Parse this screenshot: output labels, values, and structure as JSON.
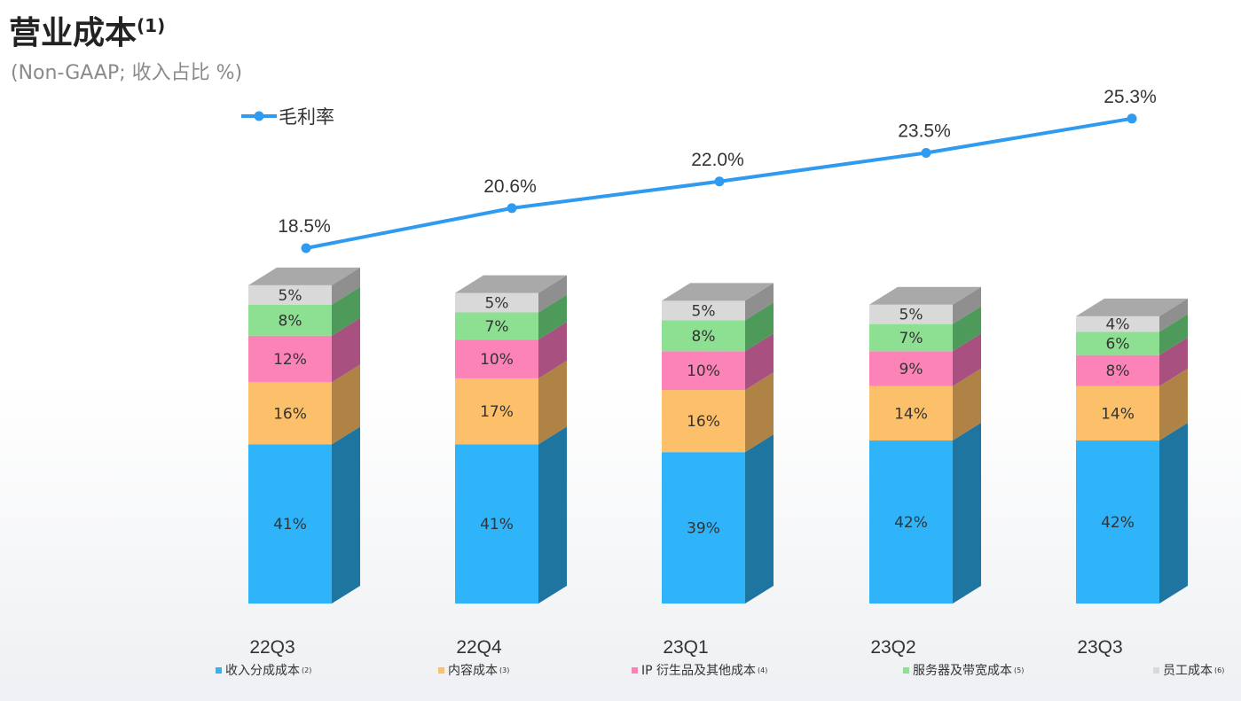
{
  "header": {
    "title": "营业成本",
    "title_sup": "(1)",
    "subtitle": "(Non-GAAP;  收入占比 %)"
  },
  "chart_data": {
    "type": "bar",
    "stacked": true,
    "categories": [
      "22Q3",
      "22Q4",
      "23Q1",
      "23Q2",
      "23Q3"
    ],
    "series": [
      {
        "name": "收入分成成本",
        "note": "(2)",
        "values": [
          41,
          41,
          39,
          42,
          42
        ],
        "color": "#2fb4f9",
        "side_color": "#1e75a0"
      },
      {
        "name": "内容成本",
        "note": "(3)",
        "values": [
          16,
          17,
          16,
          14,
          14
        ],
        "color": "#fcbf6a",
        "side_color": "#ae8345"
      },
      {
        "name": "IP 衍生品及其他成本",
        "note": "(4)",
        "values": [
          12,
          10,
          10,
          9,
          8
        ],
        "color": "#fb83b7",
        "side_color": "#a85080"
      },
      {
        "name": "服务器及带宽成本",
        "note": "(5)",
        "values": [
          8,
          7,
          8,
          7,
          6
        ],
        "color": "#8ddf92",
        "side_color": "#4e9a5b"
      },
      {
        "name": "员工成本",
        "note": "(6)",
        "values": [
          5,
          5,
          5,
          5,
          4
        ],
        "color": "#d9d9d9",
        "side_color": "#8f8f8f"
      }
    ],
    "line_series": {
      "name": "毛利率",
      "values": [
        18.5,
        20.6,
        22.0,
        23.5,
        25.3
      ],
      "labels": [
        "18.5%",
        "20.6%",
        "22.0%",
        "23.5%",
        "25.3%"
      ],
      "color": "#2f9bf0"
    },
    "bar_value_suffix": "%",
    "legend_position": "bottom",
    "grid": false
  }
}
